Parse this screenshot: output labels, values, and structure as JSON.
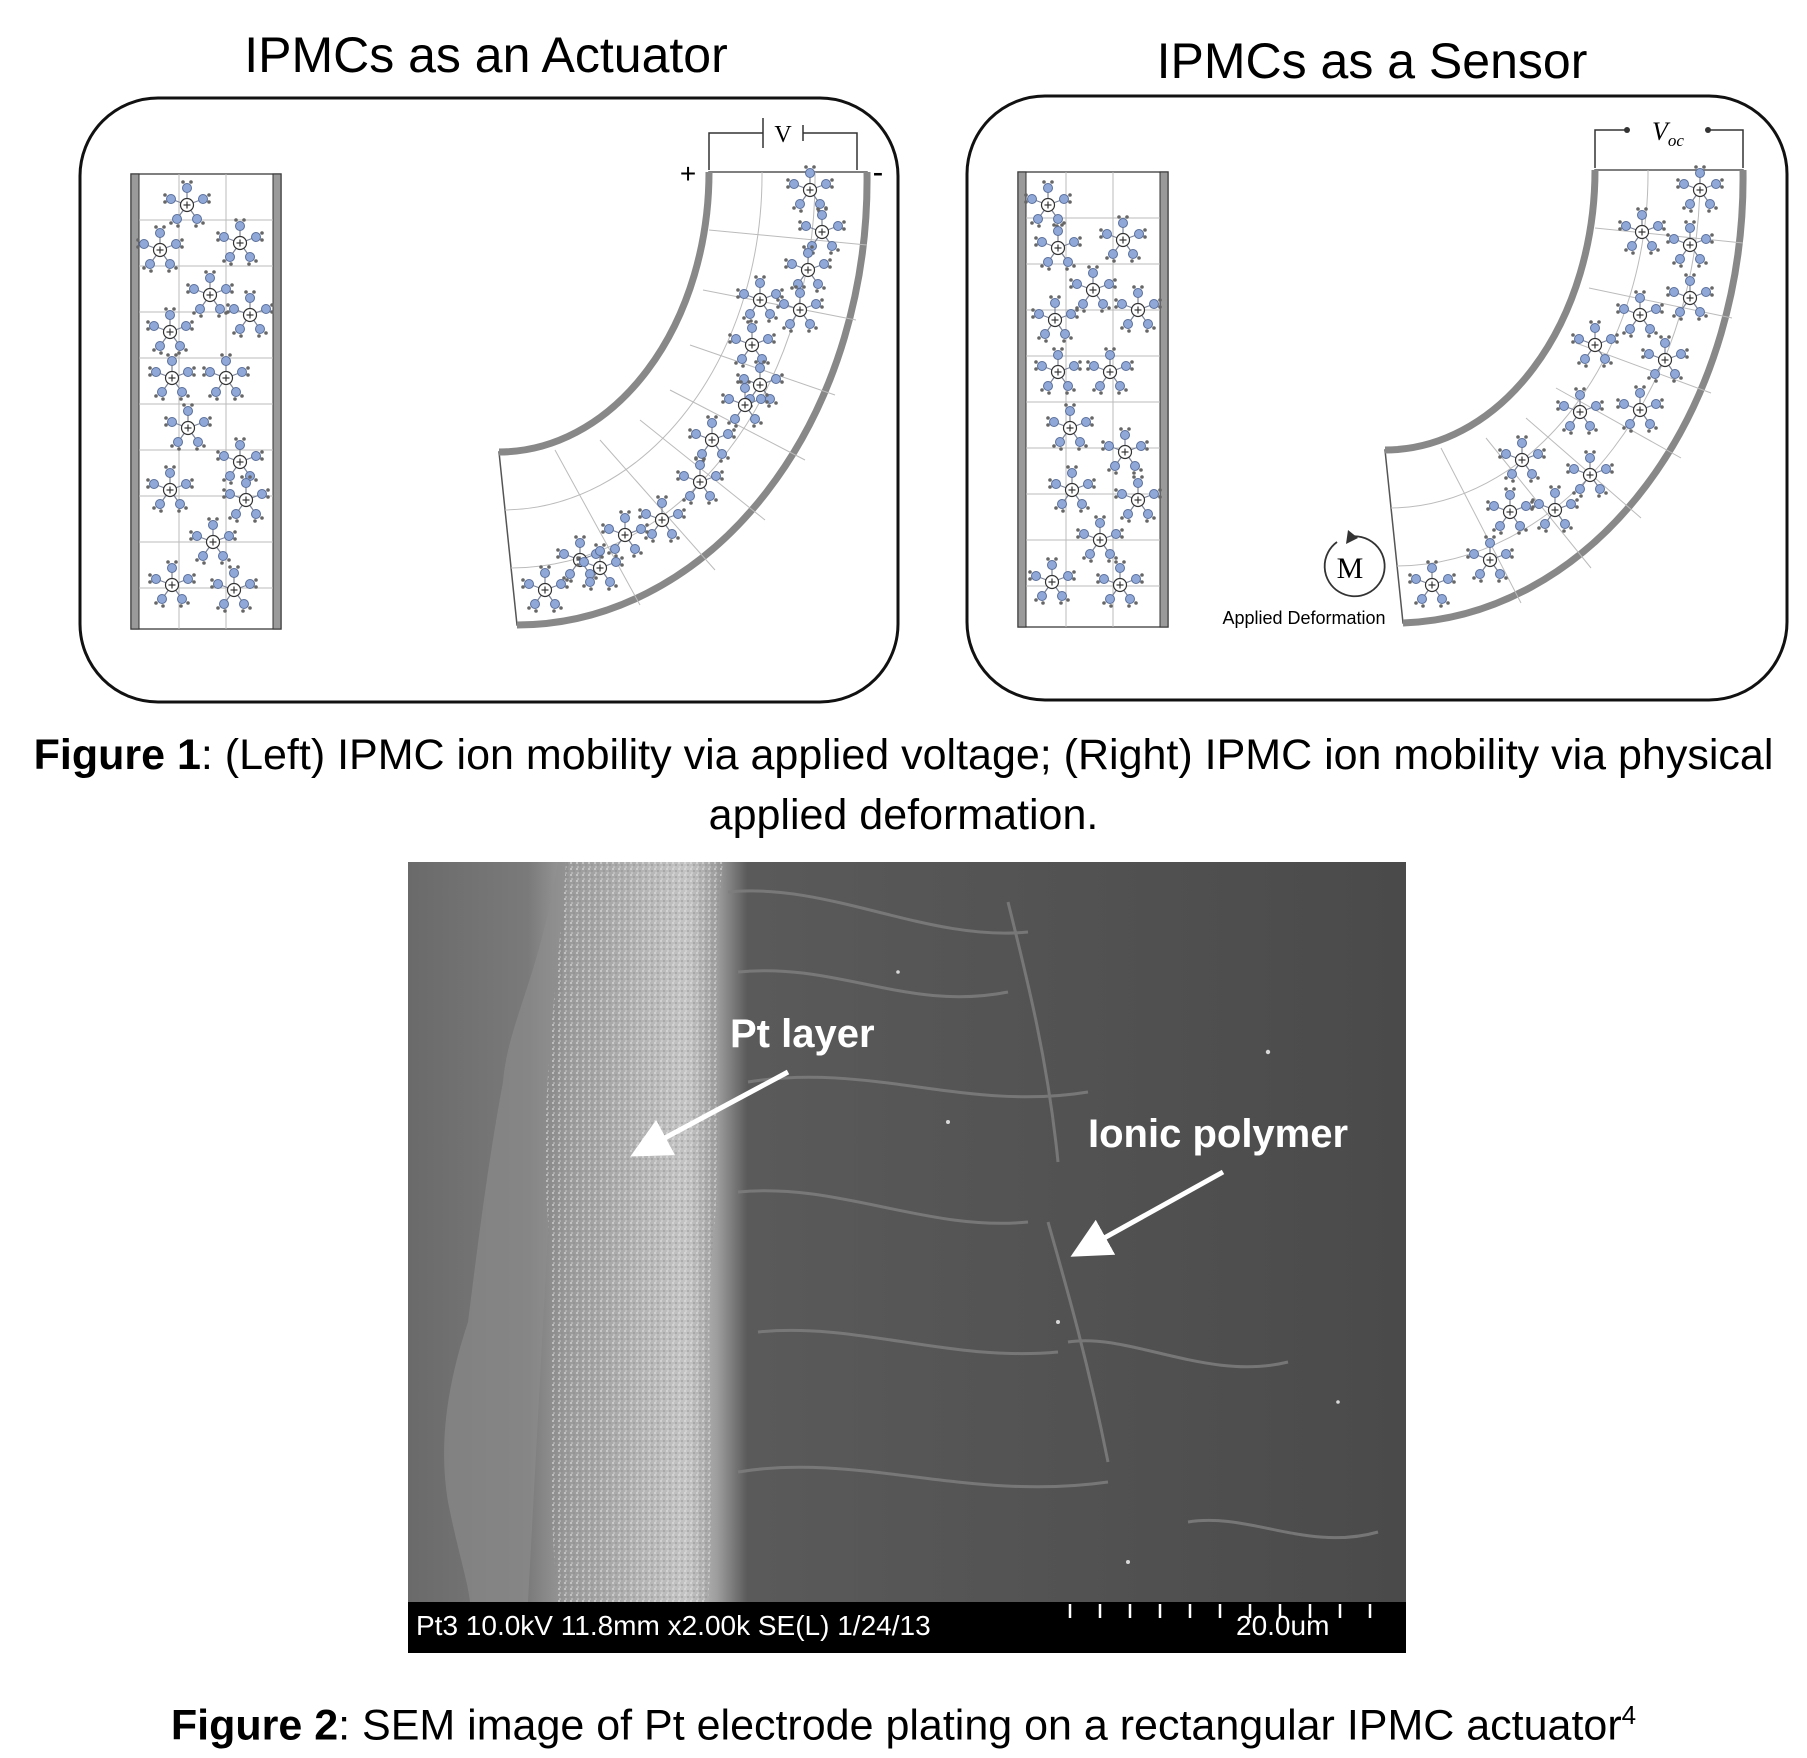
{
  "figure1": {
    "panel_left_title": "IPMCs as an Actuator",
    "panel_right_title": "IPMCs as a Sensor",
    "voltage_label": "V",
    "plus_sign": "+",
    "minus_sign": "-",
    "voc_label": "V",
    "voc_subscript": "oc",
    "moment_label": "M",
    "applied_deformation_label": "Applied Deformation",
    "caption_bold": "Figure 1",
    "caption_text": ": (Left) IPMC ion mobility via applied voltage; (Right) IPMC ion mobility via physical applied deformation."
  },
  "figure2": {
    "pt_layer_label": "Pt layer",
    "ionic_polymer_label": "Ionic polymer",
    "sem_info": "Pt3 10.0kV 11.8mm x2.00k SE(L) 1/24/13",
    "scale_label": "20.0um",
    "caption_bold": "Figure 2",
    "caption_text": ": SEM image of Pt electrode plating on a rectangular IPMC actuator",
    "caption_superscript": "4"
  },
  "colors": {
    "ion_fill": "#8fa8d8",
    "ion_stroke": "#5a6f9a",
    "frame_stroke": "#111111",
    "sem_dark": "#4c4c4c",
    "sem_light": "#c8c8c8"
  }
}
